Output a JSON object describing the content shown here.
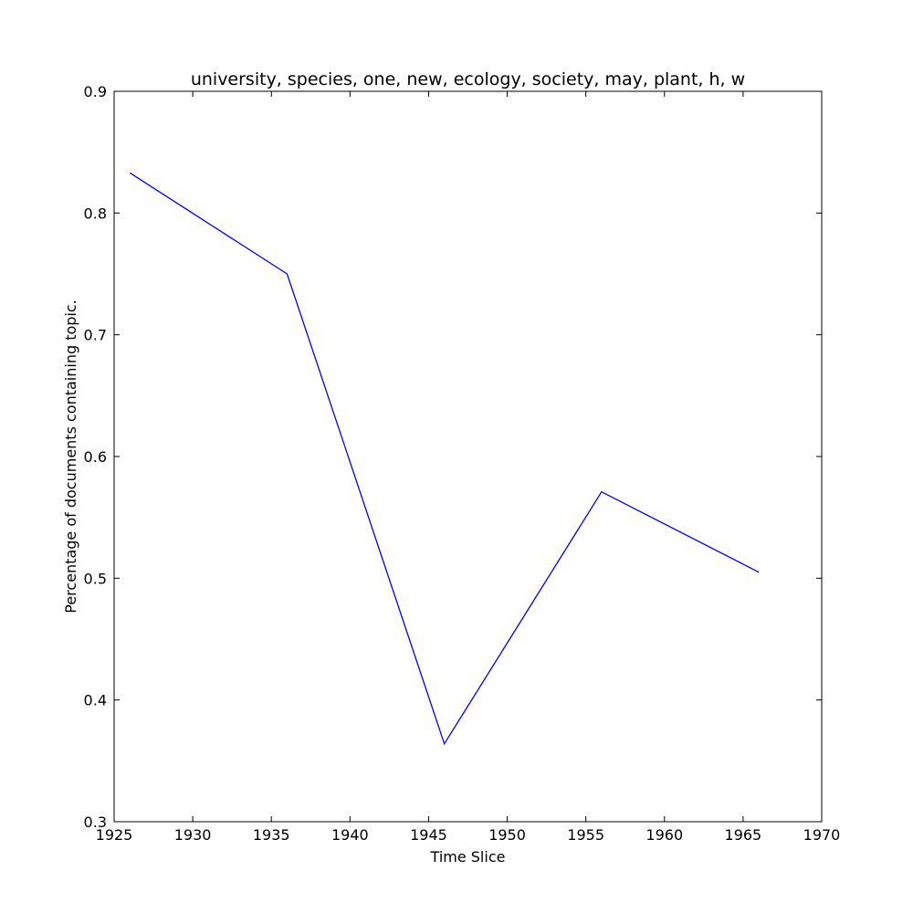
{
  "chart_data": {
    "type": "line",
    "title": "university, species, one, new, ecology, society, may, plant, h, w",
    "xlabel": "Time Slice",
    "ylabel": "Percentage of documents containing topic.",
    "xlim": [
      1925,
      1970
    ],
    "ylim": [
      0.3,
      0.9
    ],
    "xticks": [
      1925,
      1930,
      1935,
      1940,
      1945,
      1950,
      1955,
      1960,
      1965,
      1970
    ],
    "yticks": [
      0.3,
      0.4,
      0.5,
      0.6,
      0.7,
      0.8,
      0.9
    ],
    "xtick_labels": [
      "1925",
      "1930",
      "1935",
      "1940",
      "1945",
      "1950",
      "1955",
      "1960",
      "1965",
      "1970"
    ],
    "ytick_labels": [
      "0.3",
      "0.4",
      "0.5",
      "0.6",
      "0.7",
      "0.8",
      "0.9"
    ],
    "grid": false,
    "series": [
      {
        "color": "#0000ff",
        "x": [
          1926,
          1936,
          1946,
          1956,
          1966
        ],
        "y": [
          0.833,
          0.75,
          0.364,
          0.571,
          0.505
        ]
      }
    ]
  }
}
